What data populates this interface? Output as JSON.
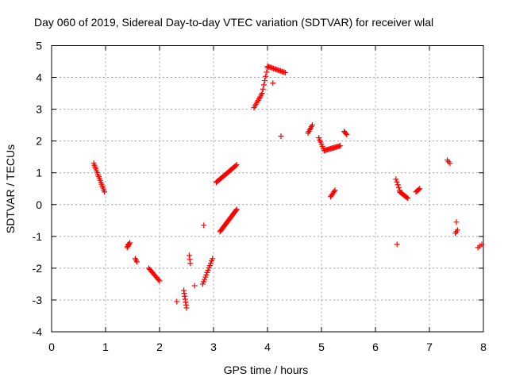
{
  "chart_data": {
    "type": "scatter",
    "title": "Day 060 of 2019, Sidereal Day-to-day VTEC variation (SDTVAR) for receiver wlal",
    "xlabel": "GPS time / hours",
    "ylabel": "SDTVAR / TECUs",
    "xlim": [
      0,
      8
    ],
    "ylim": [
      -4,
      5
    ],
    "xticks": [
      "0",
      "1",
      "2",
      "3",
      "4",
      "5",
      "6",
      "7",
      "8"
    ],
    "yticks": [
      "-4",
      "-3",
      "-2",
      "-1",
      "0",
      "1",
      "2",
      "3",
      "4",
      "5"
    ],
    "grid": true,
    "marker": "+",
    "color": "#ff0000",
    "segments": [
      {
        "x0": 0.78,
        "y0": 1.3,
        "x1": 0.98,
        "y1": 0.4,
        "n": 16
      },
      {
        "x0": 1.4,
        "y0": -1.35,
        "x1": 1.45,
        "y1": -1.2,
        "n": 5
      },
      {
        "x0": 1.55,
        "y0": -1.7,
        "x1": 1.58,
        "y1": -1.8,
        "n": 3
      },
      {
        "x0": 1.8,
        "y0": -2.0,
        "x1": 2.0,
        "y1": -2.4,
        "n": 12
      },
      {
        "x0": 2.45,
        "y0": -2.7,
        "x1": 2.5,
        "y1": -3.25,
        "n": 7
      },
      {
        "x0": 2.55,
        "y0": -1.6,
        "x1": 2.57,
        "y1": -1.85,
        "n": 3
      },
      {
        "x0": 2.8,
        "y0": -2.5,
        "x1": 2.98,
        "y1": -1.7,
        "n": 12
      },
      {
        "x0": 3.05,
        "y0": 0.7,
        "x1": 3.43,
        "y1": 1.25,
        "n": 22
      },
      {
        "x0": 3.12,
        "y0": -0.85,
        "x1": 3.43,
        "y1": -0.15,
        "n": 24
      },
      {
        "x0": 3.75,
        "y0": 3.05,
        "x1": 3.9,
        "y1": 3.5,
        "n": 9
      },
      {
        "x0": 3.9,
        "y0": 3.5,
        "x1": 4.0,
        "y1": 4.3,
        "n": 7
      },
      {
        "x0": 4.0,
        "y0": 4.35,
        "x1": 4.33,
        "y1": 4.15,
        "n": 16
      },
      {
        "x0": 4.75,
        "y0": 2.25,
        "x1": 4.83,
        "y1": 2.5,
        "n": 6
      },
      {
        "x0": 4.95,
        "y0": 2.1,
        "x1": 5.05,
        "y1": 1.7,
        "n": 7
      },
      {
        "x0": 5.05,
        "y0": 1.7,
        "x1": 5.35,
        "y1": 1.85,
        "n": 16
      },
      {
        "x0": 5.17,
        "y0": 0.25,
        "x1": 5.25,
        "y1": 0.45,
        "n": 6
      },
      {
        "x0": 5.42,
        "y0": 2.3,
        "x1": 5.47,
        "y1": 2.2,
        "n": 4
      },
      {
        "x0": 6.38,
        "y0": 0.8,
        "x1": 6.45,
        "y1": 0.45,
        "n": 5
      },
      {
        "x0": 6.45,
        "y0": 0.4,
        "x1": 6.6,
        "y1": 0.2,
        "n": 10
      },
      {
        "x0": 6.75,
        "y0": 0.4,
        "x1": 6.82,
        "y1": 0.5,
        "n": 5
      },
      {
        "x0": 7.33,
        "y0": 1.4,
        "x1": 7.38,
        "y1": 1.3,
        "n": 3
      },
      {
        "x0": 7.48,
        "y0": -0.9,
        "x1": 7.52,
        "y1": -0.8,
        "n": 3
      },
      {
        "x0": 7.9,
        "y0": -1.35,
        "x1": 7.97,
        "y1": -1.25,
        "n": 3
      }
    ],
    "points": [
      {
        "x": 1.42,
        "y": -1.25
      },
      {
        "x": 2.32,
        "y": -3.05
      },
      {
        "x": 2.65,
        "y": -2.55
      },
      {
        "x": 2.82,
        "y": -0.65
      },
      {
        "x": 4.1,
        "y": 3.82
      },
      {
        "x": 4.25,
        "y": 2.15
      },
      {
        "x": 6.4,
        "y": -1.25
      },
      {
        "x": 7.5,
        "y": -0.55
      }
    ]
  }
}
